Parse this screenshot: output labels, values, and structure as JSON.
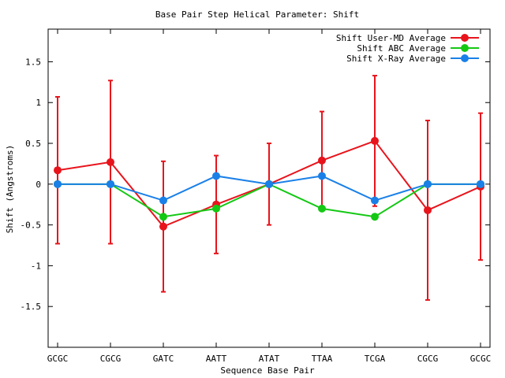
{
  "chart_data": {
    "type": "line",
    "title": "Base Pair Step Helical Parameter: Shift",
    "xlabel": "Sequence Base Pair",
    "ylabel": "Shift (Angstroms)",
    "categories": [
      "GCGC",
      "CGCG",
      "GATC",
      "AATT",
      "ATAT",
      "TTAA",
      "TCGA",
      "CGCG",
      "GCGC"
    ],
    "ylim": [
      -2,
      1.9
    ],
    "yticks": [
      -1.5,
      -1,
      -0.5,
      0,
      0.5,
      1,
      1.5
    ],
    "ytick_labels": [
      "-1.5",
      "-1",
      "-0.5",
      "0",
      "0.5",
      "1",
      "1.5"
    ],
    "grid": false,
    "legend_position": "top-right",
    "series": [
      {
        "name": "Shift User-MD Average",
        "color": "#e8141c",
        "values": [
          0.17,
          0.27,
          -0.52,
          -0.25,
          0.0,
          0.29,
          0.53,
          -0.32,
          -0.03
        ],
        "error": [
          0.9,
          1.0,
          0.8,
          0.6,
          0.5,
          0.6,
          0.8,
          1.1,
          0.9
        ]
      },
      {
        "name": "Shift ABC Average",
        "color": "#14c814",
        "values": [
          0.0,
          0.0,
          -0.4,
          -0.3,
          0.0,
          -0.3,
          -0.4,
          0.0,
          0.0
        ]
      },
      {
        "name": "Shift X-Ray Average",
        "color": "#1a80e8",
        "values": [
          0.0,
          0.0,
          -0.2,
          0.1,
          0.0,
          0.1,
          -0.2,
          0.0,
          0.0
        ]
      }
    ]
  }
}
